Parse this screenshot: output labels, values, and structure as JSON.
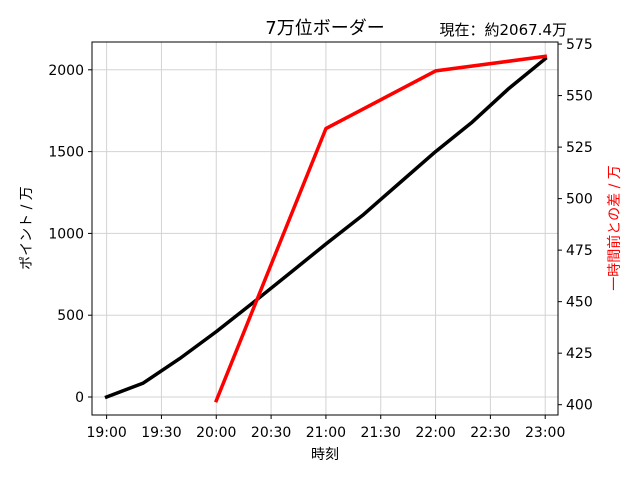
{
  "chart_data": {
    "type": "line",
    "title": "7万位ボーダー",
    "current_text": "現在：約2067.4万",
    "xlabel": "時刻",
    "ylabel_left": "ポイント / 万",
    "ylabel_right": "一時間前との差 / 万",
    "grid": true,
    "x_ticks": [
      "19:00",
      "19:30",
      "20:00",
      "20:30",
      "21:00",
      "21:30",
      "22:00",
      "22:30",
      "23:00"
    ],
    "xlim": [
      "18:52",
      "23:07"
    ],
    "ylim_left": [
      -110,
      2170
    ],
    "ylim_right": [
      395,
      576
    ],
    "yticks_left": [
      0,
      500,
      1000,
      1500,
      2000
    ],
    "yticks_right": [
      400,
      425,
      450,
      475,
      500,
      525,
      550,
      575
    ],
    "series": [
      {
        "axis": "left",
        "color": "#000000",
        "x": [
          "19:00",
          "19:20",
          "19:40",
          "20:00",
          "20:20",
          "20:40",
          "21:00",
          "21:20",
          "21:40",
          "22:00",
          "22:20",
          "22:40",
          "23:00"
        ],
        "values": [
          0,
          85,
          235,
          400,
          575,
          755,
          935,
          1110,
          1305,
          1500,
          1680,
          1885,
          2067.4
        ]
      },
      {
        "axis": "right",
        "color": "#ff0000",
        "x": [
          "20:00",
          "21:00",
          "22:00",
          "23:00"
        ],
        "values": [
          402,
          534,
          562,
          569
        ]
      }
    ]
  }
}
